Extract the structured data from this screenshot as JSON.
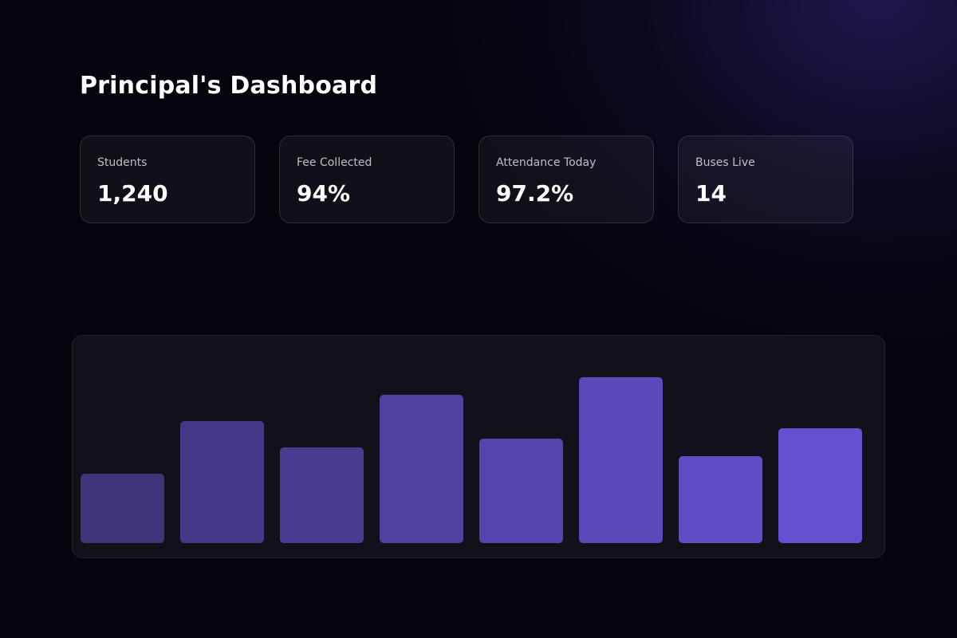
{
  "header": {
    "title": "Principal's Dashboard"
  },
  "stats": [
    {
      "label": "Students",
      "value": "1,240"
    },
    {
      "label": "Fee Collected",
      "value": "94%"
    },
    {
      "label": "Attendance Today",
      "value": "97.2%"
    },
    {
      "label": "Buses Live",
      "value": "14"
    }
  ],
  "colors": {
    "background": "#05040c",
    "accent_glow": "#2a2070",
    "bar_start": "#3f3479",
    "bar_end": "#6650d2"
  },
  "chart_data": {
    "type": "bar",
    "categories": [
      "",
      "",
      "",
      "",
      "",
      "",
      "",
      ""
    ],
    "values": [
      87,
      153,
      120,
      186,
      131,
      208,
      109,
      144
    ],
    "title": "",
    "xlabel": "",
    "ylabel": "",
    "ylim": [
      0,
      230
    ],
    "grid": false,
    "legend": "none"
  }
}
